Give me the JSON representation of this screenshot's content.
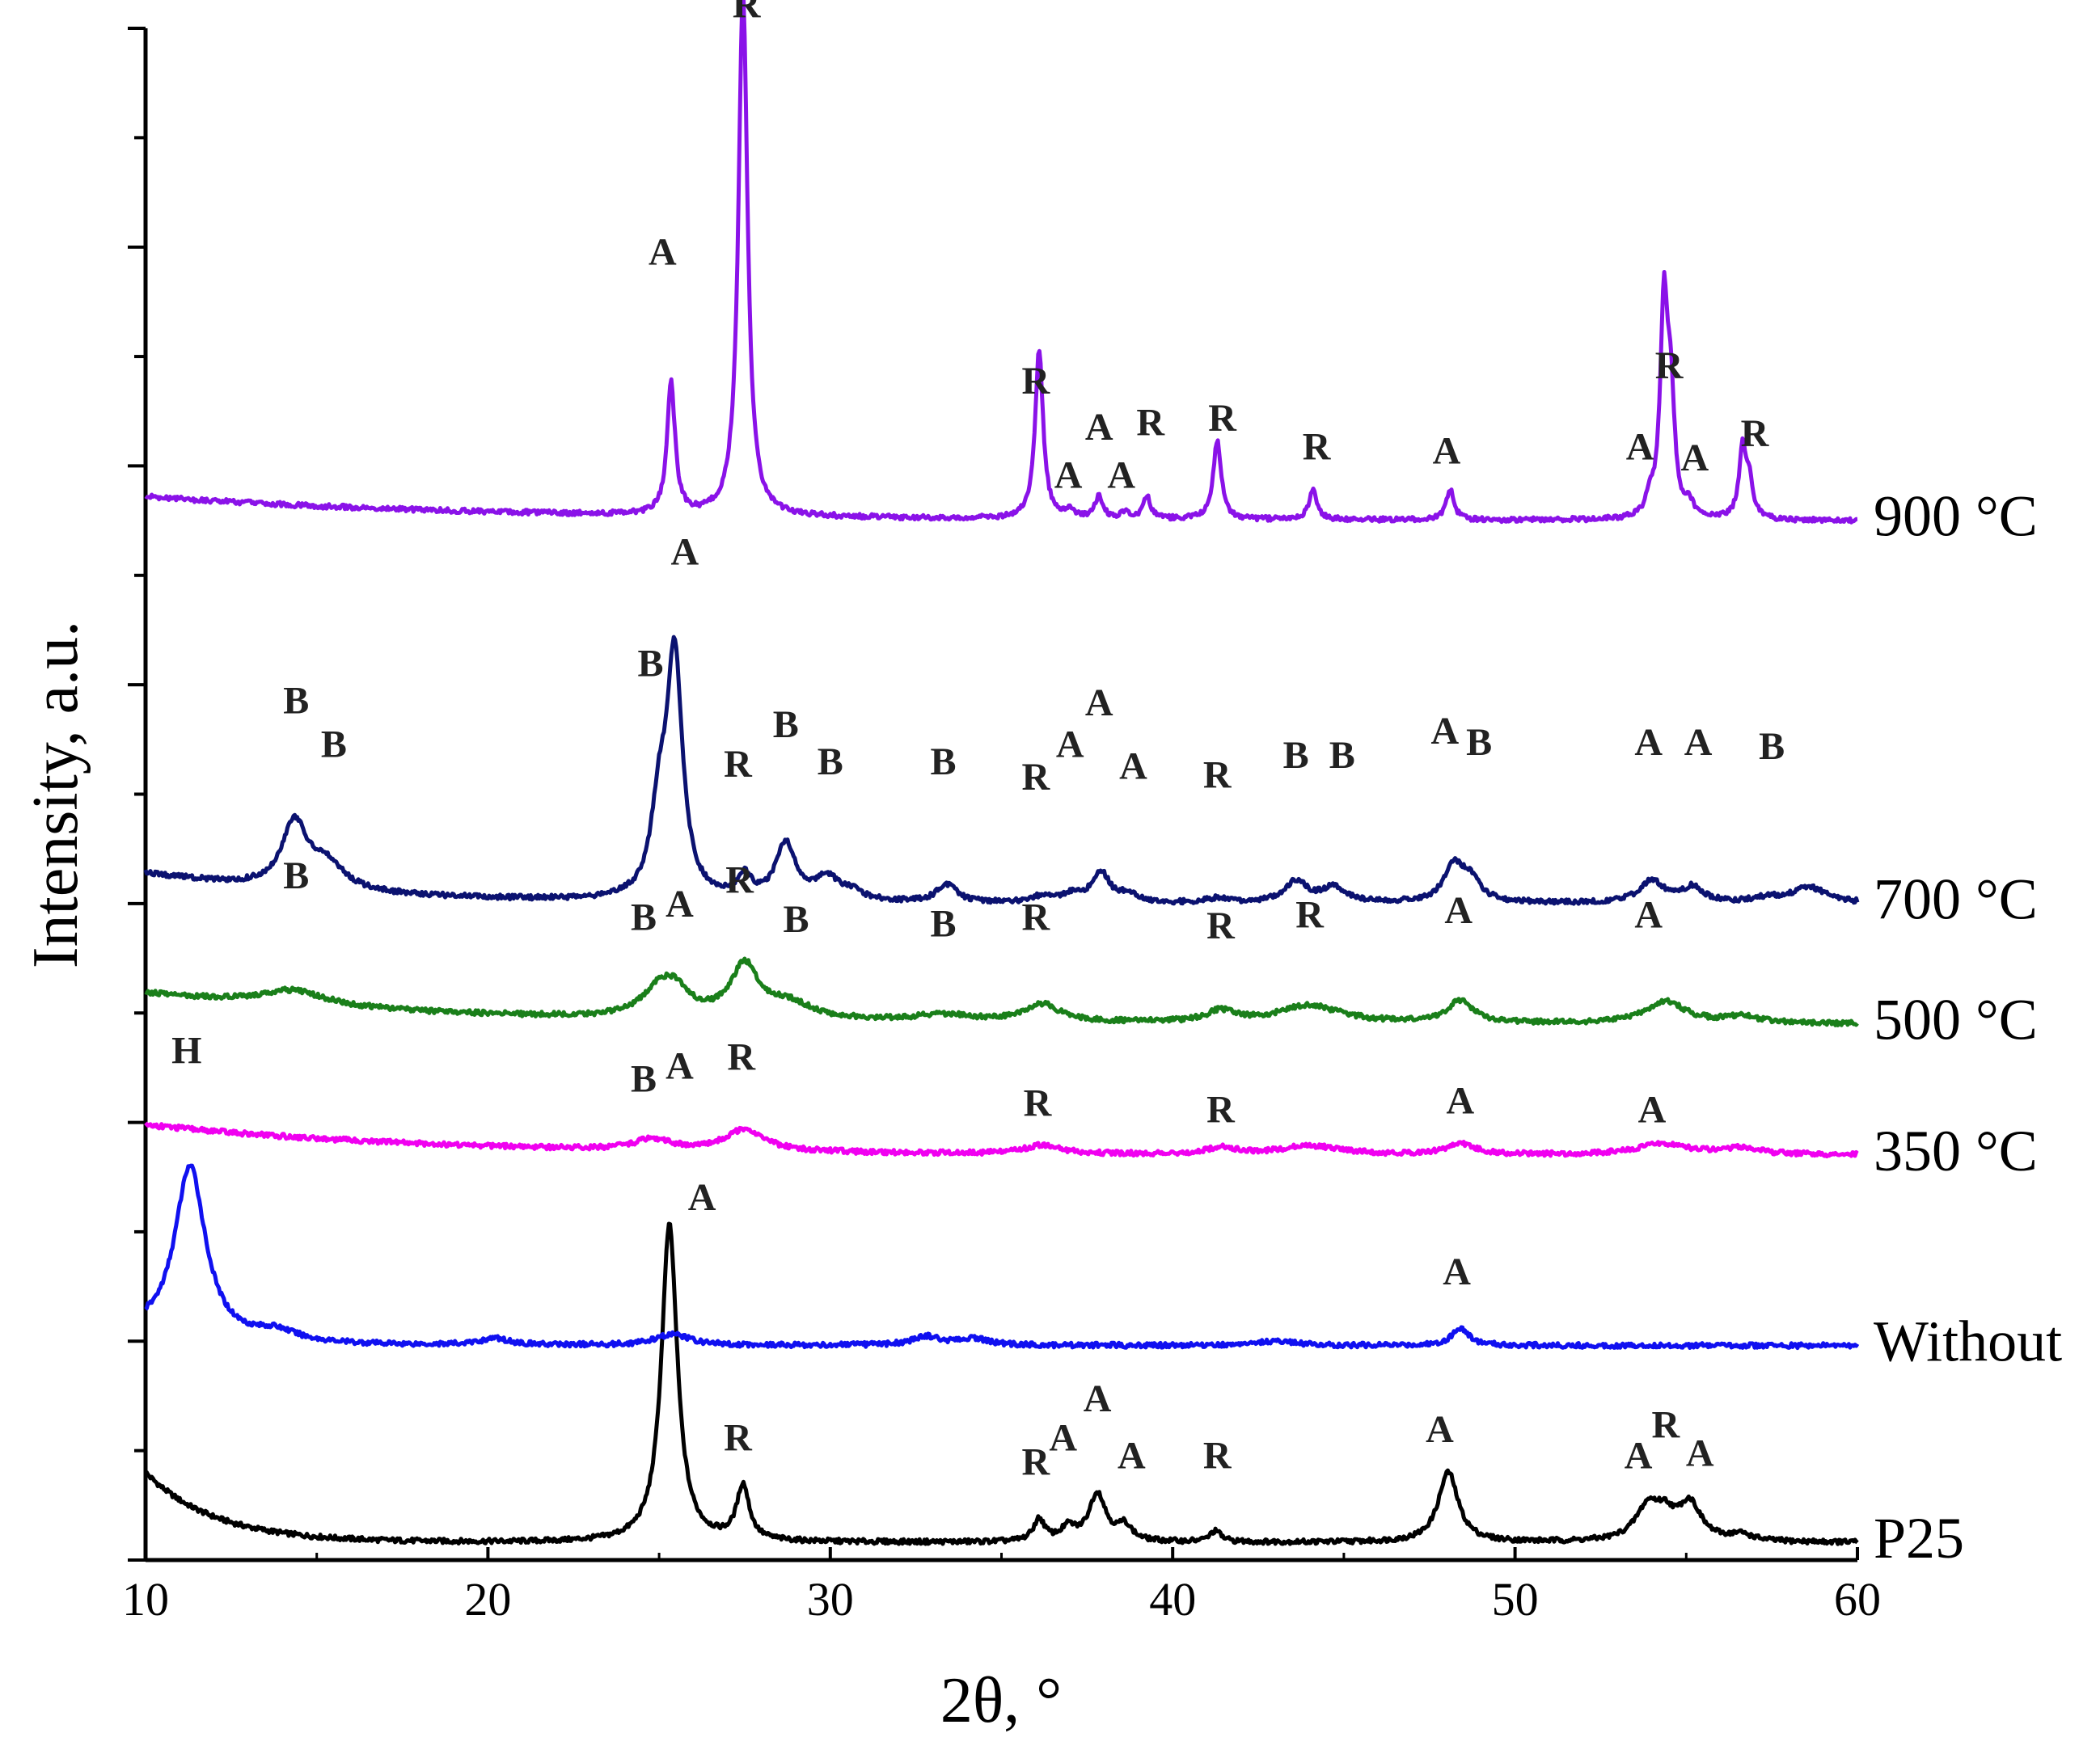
{
  "chart_data": {
    "type": "line",
    "title": "",
    "xlabel": "2θ, °",
    "ylabel": "Intensity, a.u.",
    "xlim": [
      10,
      60
    ],
    "ylim": [
      0,
      7
    ],
    "x_ticks": [
      10,
      20,
      30,
      40,
      50,
      60
    ],
    "x_tick_labels": [
      "10",
      "20",
      "30",
      "40",
      "50",
      "60"
    ],
    "y_ticks": [
      0,
      0.5,
      1,
      1.5,
      2,
      2.5,
      3,
      3.5,
      4,
      4.5,
      5,
      5.5,
      6,
      6.5,
      7
    ],
    "y_tick_labels_shown": false,
    "grid": false,
    "legend": "none",
    "series": [
      {
        "name": "P25",
        "label": "P25",
        "color": "#000000",
        "offset": 0.08,
        "baseline": {
          "kind": "decay",
          "start": 0.32,
          "end": 0.0,
          "rate": 0.5
        },
        "peaks": [
          [
            25.3,
            1.45,
            0.28
          ],
          [
            27.45,
            0.25,
            0.22
          ],
          [
            36.1,
            0.1,
            0.2
          ],
          [
            36.95,
            0.06,
            0.25
          ],
          [
            37.8,
            0.22,
            0.3
          ],
          [
            38.6,
            0.07,
            0.25
          ],
          [
            41.25,
            0.05,
            0.2
          ],
          [
            48.05,
            0.32,
            0.35
          ],
          [
            53.9,
            0.16,
            0.45
          ],
          [
            54.4,
            0.08,
            0.3
          ],
          [
            55.1,
            0.17,
            0.4
          ],
          [
            56.6,
            0.03,
            0.4
          ]
        ]
      },
      {
        "name": "Without",
        "label": "Without",
        "color": "#1010f0",
        "offset": 0.98,
        "baseline": {
          "kind": "flat",
          "start": 0.05,
          "end": 0.0,
          "rate": 0.0
        },
        "peaks": [
          [
            11.3,
            0.8,
            0.55
          ],
          [
            13.8,
            0.05,
            0.8
          ],
          [
            20.2,
            0.03,
            0.5
          ],
          [
            25.4,
            0.05,
            0.6
          ],
          [
            32.8,
            0.04,
            0.5
          ],
          [
            34.2,
            0.03,
            0.5
          ],
          [
            43,
            0.02,
            0.7
          ],
          [
            48.4,
            0.08,
            0.3
          ]
        ]
      },
      {
        "name": "350 °C",
        "label": "350 °C",
        "color": "#f000f0",
        "offset": 1.85,
        "baseline": {
          "kind": "decay",
          "start": 0.14,
          "end": 0.0,
          "rate": 0.12
        },
        "peaks": [
          [
            24.8,
            0.05,
            0.6
          ],
          [
            27.5,
            0.1,
            0.7
          ],
          [
            36.2,
            0.04,
            0.6
          ],
          [
            41.4,
            0.03,
            0.5
          ],
          [
            44,
            0.04,
            1.0
          ],
          [
            48.4,
            0.05,
            0.5
          ],
          [
            54.3,
            0.05,
            0.9
          ],
          [
            56.6,
            0.03,
            0.7
          ]
        ]
      },
      {
        "name": "500 °C",
        "label": "500 °C",
        "color": "#1a7f1a",
        "offset": 2.45,
        "baseline": {
          "kind": "decay",
          "start": 0.14,
          "end": 0.0,
          "rate": 0.12
        },
        "peaks": [
          [
            14.3,
            0.07,
            1.2
          ],
          [
            25.0,
            0.12,
            0.6
          ],
          [
            25.5,
            0.1,
            0.5
          ],
          [
            27.5,
            0.24,
            0.5
          ],
          [
            28.8,
            0.07,
            0.8
          ],
          [
            33.3,
            0.03,
            1.0
          ],
          [
            36.2,
            0.08,
            0.6
          ],
          [
            41.4,
            0.05,
            0.5
          ],
          [
            44.0,
            0.08,
            1.1
          ],
          [
            48.4,
            0.1,
            0.45
          ],
          [
            54.4,
            0.1,
            0.7
          ],
          [
            56.6,
            0.03,
            0.6
          ]
        ]
      },
      {
        "name": "700 °C",
        "label": "700 °C",
        "color": "#0b1270",
        "offset": 3.0,
        "baseline": {
          "kind": "decay",
          "start": 0.14,
          "end": 0.0,
          "rate": 0.18
        },
        "peaks": [
          [
            14.35,
            0.3,
            0.45
          ],
          [
            15.3,
            0.12,
            0.6
          ],
          [
            25.0,
            0.35,
            0.28
          ],
          [
            25.45,
            1.1,
            0.28
          ],
          [
            27.5,
            0.1,
            0.25
          ],
          [
            28.7,
            0.26,
            0.35
          ],
          [
            29.9,
            0.1,
            0.4
          ],
          [
            30.6,
            0.04,
            0.4
          ],
          [
            33.4,
            0.08,
            0.35
          ],
          [
            36.2,
            0.03,
            0.3
          ],
          [
            37.1,
            0.04,
            0.3
          ],
          [
            37.9,
            0.14,
            0.3
          ],
          [
            38.7,
            0.04,
            0.3
          ],
          [
            41.3,
            0.02,
            0.35
          ],
          [
            43.6,
            0.1,
            0.4
          ],
          [
            44.7,
            0.07,
            0.4
          ],
          [
            48.2,
            0.16,
            0.35
          ],
          [
            48.7,
            0.1,
            0.35
          ],
          [
            54.0,
            0.1,
            0.45
          ],
          [
            55.2,
            0.07,
            0.35
          ],
          [
            57.4,
            0.02,
            0.6
          ],
          [
            58.6,
            0.07,
            0.6
          ]
        ]
      },
      {
        "name": "900 °C",
        "label": "900 °C",
        "color": "#8a12e8",
        "offset": 4.75,
        "baseline": {
          "kind": "decay",
          "start": 0.11,
          "end": 0.0,
          "rate": 0.1
        },
        "peaks": [
          [
            25.35,
            0.6,
            0.14
          ],
          [
            27.45,
            2.4,
            0.16
          ],
          [
            36.1,
            0.77,
            0.14
          ],
          [
            37.0,
            0.04,
            0.12
          ],
          [
            37.85,
            0.1,
            0.14
          ],
          [
            38.6,
            0.03,
            0.12
          ],
          [
            39.25,
            0.1,
            0.13
          ],
          [
            41.3,
            0.36,
            0.14
          ],
          [
            44.1,
            0.14,
            0.14
          ],
          [
            48.1,
            0.14,
            0.14
          ],
          [
            53.95,
            0.07,
            0.15
          ],
          [
            54.35,
            0.96,
            0.13
          ],
          [
            54.55,
            0.5,
            0.13
          ],
          [
            55.1,
            0.06,
            0.15
          ],
          [
            56.65,
            0.32,
            0.13
          ],
          [
            56.85,
            0.14,
            0.13
          ]
        ]
      }
    ],
    "annotations": [
      {
        "text": "R",
        "x": 27.55,
        "y": 7.05
      },
      {
        "text": "A",
        "x": 25.1,
        "y": 5.92
      },
      {
        "text": "R",
        "x": 36.0,
        "y": 5.33
      },
      {
        "text": "R",
        "x": 39.35,
        "y": 5.14
      },
      {
        "text": "A",
        "x": 37.85,
        "y": 5.12
      },
      {
        "text": "R",
        "x": 41.45,
        "y": 5.16
      },
      {
        "text": "R",
        "x": 44.2,
        "y": 5.03
      },
      {
        "text": "A",
        "x": 36.95,
        "y": 4.9
      },
      {
        "text": "A",
        "x": 38.5,
        "y": 4.9
      },
      {
        "text": "A",
        "x": 48.0,
        "y": 5.01
      },
      {
        "text": "R",
        "x": 54.5,
        "y": 5.4
      },
      {
        "text": "A",
        "x": 53.65,
        "y": 5.03
      },
      {
        "text": "A",
        "x": 55.25,
        "y": 4.98
      },
      {
        "text": "R",
        "x": 57.0,
        "y": 5.09
      },
      {
        "text": "A",
        "x": 25.75,
        "y": 4.55
      },
      {
        "text": "B",
        "x": 24.75,
        "y": 4.04
      },
      {
        "text": "B",
        "x": 14.4,
        "y": 3.87
      },
      {
        "text": "B",
        "x": 15.5,
        "y": 3.67
      },
      {
        "text": "R",
        "x": 27.3,
        "y": 3.58
      },
      {
        "text": "B",
        "x": 28.7,
        "y": 3.76
      },
      {
        "text": "B",
        "x": 30.0,
        "y": 3.59
      },
      {
        "text": "B",
        "x": 33.3,
        "y": 3.59
      },
      {
        "text": "R",
        "x": 36.0,
        "y": 3.52
      },
      {
        "text": "A",
        "x": 37.0,
        "y": 3.67
      },
      {
        "text": "A",
        "x": 37.85,
        "y": 3.86
      },
      {
        "text": "A",
        "x": 38.85,
        "y": 3.57
      },
      {
        "text": "R",
        "x": 41.3,
        "y": 3.53
      },
      {
        "text": "B",
        "x": 43.6,
        "y": 3.62
      },
      {
        "text": "B",
        "x": 44.95,
        "y": 3.62
      },
      {
        "text": "A",
        "x": 47.95,
        "y": 3.73
      },
      {
        "text": "B",
        "x": 48.95,
        "y": 3.68
      },
      {
        "text": "A",
        "x": 53.9,
        "y": 3.68
      },
      {
        "text": "A",
        "x": 55.35,
        "y": 3.68
      },
      {
        "text": "B",
        "x": 57.5,
        "y": 3.66
      },
      {
        "text": "B",
        "x": 14.4,
        "y": 3.07
      },
      {
        "text": "B",
        "x": 24.55,
        "y": 2.88
      },
      {
        "text": "A",
        "x": 25.6,
        "y": 2.94
      },
      {
        "text": "R",
        "x": 27.35,
        "y": 3.05
      },
      {
        "text": "B",
        "x": 29.0,
        "y": 2.87
      },
      {
        "text": "B",
        "x": 33.3,
        "y": 2.85
      },
      {
        "text": "R",
        "x": 36.0,
        "y": 2.88
      },
      {
        "text": "R",
        "x": 41.4,
        "y": 2.84
      },
      {
        "text": "R",
        "x": 44.0,
        "y": 2.89
      },
      {
        "text": "A",
        "x": 48.35,
        "y": 2.91
      },
      {
        "text": "A",
        "x": 53.9,
        "y": 2.89
      },
      {
        "text": "H",
        "x": 11.2,
        "y": 2.27
      },
      {
        "text": "B",
        "x": 24.55,
        "y": 2.14
      },
      {
        "text": "A",
        "x": 25.6,
        "y": 2.2
      },
      {
        "text": "R",
        "x": 27.4,
        "y": 2.24
      },
      {
        "text": "R",
        "x": 36.05,
        "y": 2.03
      },
      {
        "text": "R",
        "x": 41.4,
        "y": 2.0
      },
      {
        "text": "A",
        "x": 48.4,
        "y": 2.04
      },
      {
        "text": "A",
        "x": 54.0,
        "y": 2.0
      },
      {
        "text": "A",
        "x": 26.25,
        "y": 1.6
      },
      {
        "text": "A",
        "x": 48.3,
        "y": 1.26
      },
      {
        "text": "A",
        "x": 37.8,
        "y": 0.68
      },
      {
        "text": "R",
        "x": 27.3,
        "y": 0.5
      },
      {
        "text": "A",
        "x": 36.8,
        "y": 0.5
      },
      {
        "text": "R",
        "x": 36.0,
        "y": 0.39
      },
      {
        "text": "A",
        "x": 38.8,
        "y": 0.42
      },
      {
        "text": "R",
        "x": 41.3,
        "y": 0.42
      },
      {
        "text": "A",
        "x": 47.8,
        "y": 0.54
      },
      {
        "text": "R",
        "x": 54.4,
        "y": 0.56
      },
      {
        "text": "A",
        "x": 53.6,
        "y": 0.42
      },
      {
        "text": "A",
        "x": 55.4,
        "y": 0.43
      }
    ]
  }
}
